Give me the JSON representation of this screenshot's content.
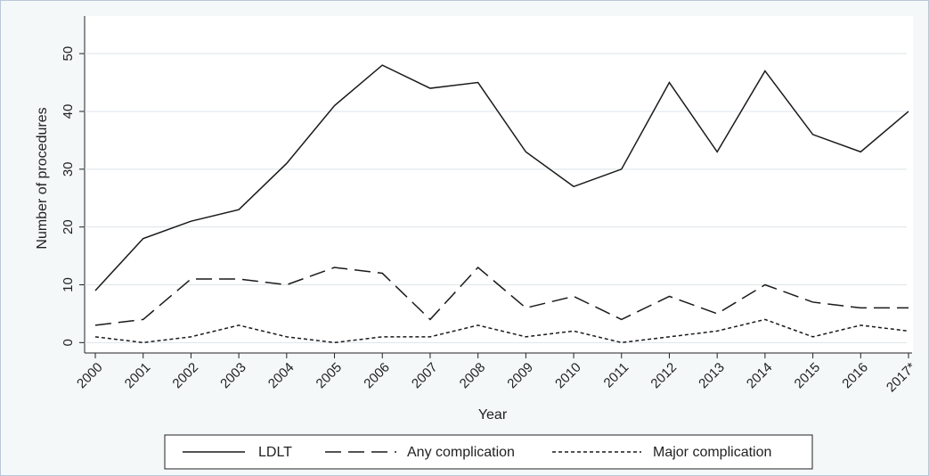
{
  "chart_data": {
    "type": "line",
    "x_label": "Year",
    "y_label": "Number of procedures",
    "categories": [
      "2000",
      "2001",
      "2002",
      "2003",
      "2004",
      "2005",
      "2006",
      "2007",
      "2008",
      "2009",
      "2010",
      "2011",
      "2012",
      "2013",
      "2014",
      "2015",
      "2016",
      "2017*"
    ],
    "series": [
      {
        "name": "LDLT",
        "color": "#1a1a1a",
        "style": "solid",
        "values": [
          9,
          18,
          21,
          23,
          31,
          41,
          48,
          44,
          45,
          33,
          27,
          30,
          45,
          33,
          47,
          36,
          33,
          40
        ]
      },
      {
        "name": "Any complication",
        "color": "#1a1a1a",
        "style": "dashed",
        "values": [
          3,
          4,
          11,
          11,
          10,
          13,
          12,
          4,
          13,
          6,
          8,
          4,
          8,
          5,
          10,
          7,
          6,
          6
        ]
      },
      {
        "name": "Major complication",
        "color": "#1a1a1a",
        "style": "dotted",
        "values": [
          1,
          0,
          1,
          3,
          1,
          0,
          1,
          1,
          3,
          1,
          2,
          0,
          1,
          2,
          4,
          1,
          3,
          2
        ]
      }
    ],
    "ylim": [
      -1.8,
      56.5
    ],
    "yticks": [
      0,
      10,
      20,
      30,
      40,
      50
    ],
    "grid": true
  }
}
